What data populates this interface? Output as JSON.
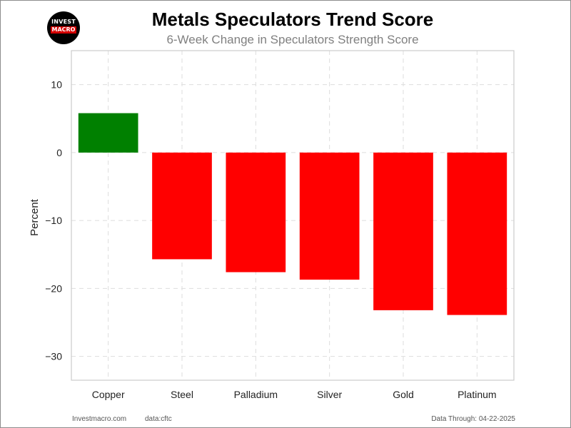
{
  "logo": {
    "line1": "INVEST",
    "line2": "MACRO"
  },
  "chart_data": {
    "type": "bar",
    "title": "Metals Speculators Trend Score",
    "subtitle": "6-Week Change in Speculators Strength Score",
    "xlabel": "",
    "ylabel": "Percent",
    "categories": [
      "Copper",
      "Steel",
      "Palladium",
      "Silver",
      "Gold",
      "Platinum"
    ],
    "values": [
      5.8,
      -15.7,
      -17.6,
      -18.7,
      -23.2,
      -23.9
    ],
    "ylim": [
      -33.5,
      15
    ],
    "yticks": [
      10,
      0,
      -10,
      -20,
      -30
    ],
    "ytick_labels": [
      "10",
      "0",
      "−10",
      "−20",
      "−30"
    ],
    "colors": {
      "positive": "#008000",
      "negative": "#ff0000"
    },
    "grid": true,
    "legend": "none"
  },
  "footer": {
    "site": "Investmacro.com",
    "source": "data:cftc",
    "date_note": "Data Through: 04-22-2025"
  }
}
